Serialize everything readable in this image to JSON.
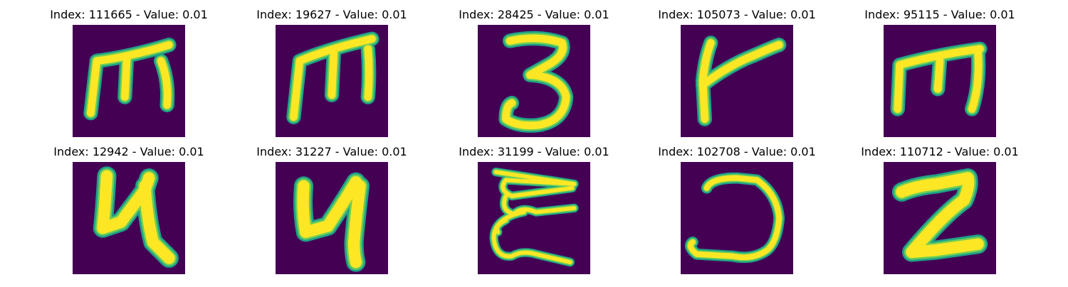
{
  "colors": {
    "background": "#440154",
    "stroke_edge": "#1fa187",
    "stroke_mid": "#6ece58",
    "stroke_core": "#fde725"
  },
  "panels": [
    {
      "title": "Index: 111665 - Value: 0.01",
      "glyph": "m-shape"
    },
    {
      "title": "Index: 19627 - Value: 0.01",
      "glyph": "m-shape"
    },
    {
      "title": "Index: 28425 - Value: 0.01",
      "glyph": "three"
    },
    {
      "title": "Index: 105073 - Value: 0.01",
      "glyph": "k-shape"
    },
    {
      "title": "Index: 95115 - Value: 0.01",
      "glyph": "m-shape"
    },
    {
      "title": "Index: 12942 - Value: 0.01",
      "glyph": "four-shape"
    },
    {
      "title": "Index: 31227 - Value: 0.01",
      "glyph": "four-shape"
    },
    {
      "title": "Index: 31199 - Value: 0.01",
      "glyph": "sigma-shape"
    },
    {
      "title": "Index: 102708 - Value: 0.01",
      "glyph": "hook-shape"
    },
    {
      "title": "Index: 110712 - Value: 0.01",
      "glyph": "two-shape"
    }
  ]
}
